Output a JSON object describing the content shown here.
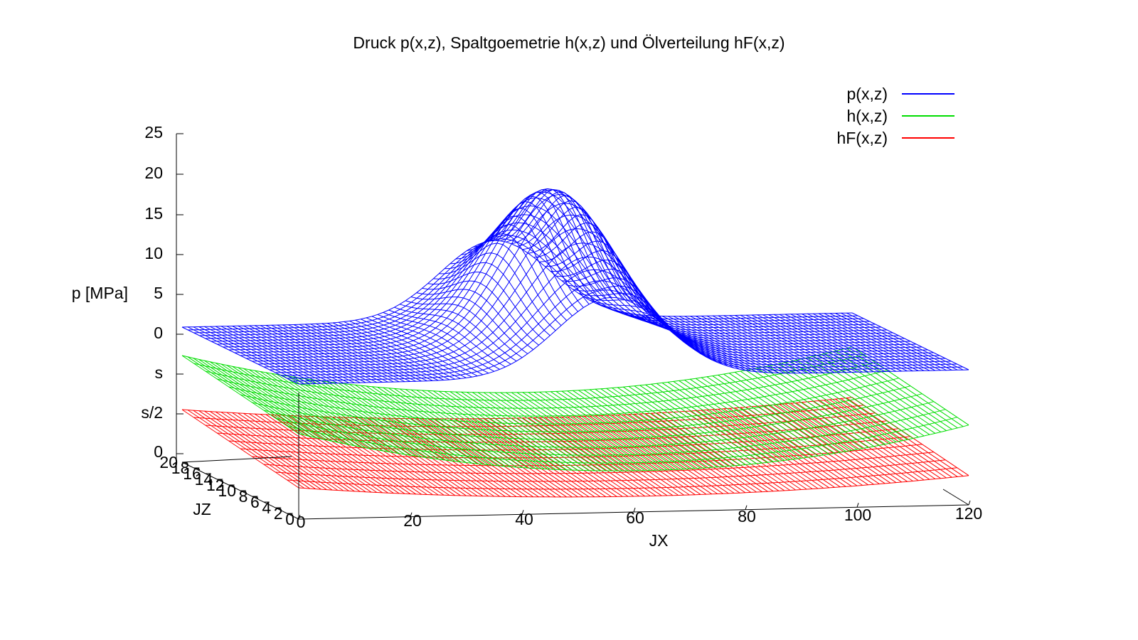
{
  "chart_data": {
    "type": "surface",
    "title": "Druck p(x,z), Spaltgoemetrie h(x,z) und Ölverteilung hF(x,z)",
    "xlabel": "JX",
    "ylabel": "JZ",
    "zlabel": "p [MPa]",
    "x_ticks": [
      "0",
      "20",
      "40",
      "60",
      "80",
      "100",
      "120"
    ],
    "y_ticks": [
      "0",
      "2",
      "4",
      "6",
      "8",
      "10",
      "12",
      "14",
      "16",
      "18",
      "20"
    ],
    "z_ticks": [
      "0",
      "s/2",
      "s",
      "0",
      "5",
      "10",
      "15",
      "20",
      "25"
    ],
    "xlim": [
      0,
      120
    ],
    "ylim": [
      0,
      20
    ],
    "legend_position": "top-right",
    "series": [
      {
        "name": "p(x,z)",
        "color": "#0000ff",
        "description_fn": "gaussian peak",
        "peak": {
          "x": 56,
          "z_value": 20
        }
      },
      {
        "name": "h(x,z)",
        "color": "#00dd00"
      },
      {
        "name": "hF(x,z)",
        "color": "#ff0000"
      }
    ]
  }
}
